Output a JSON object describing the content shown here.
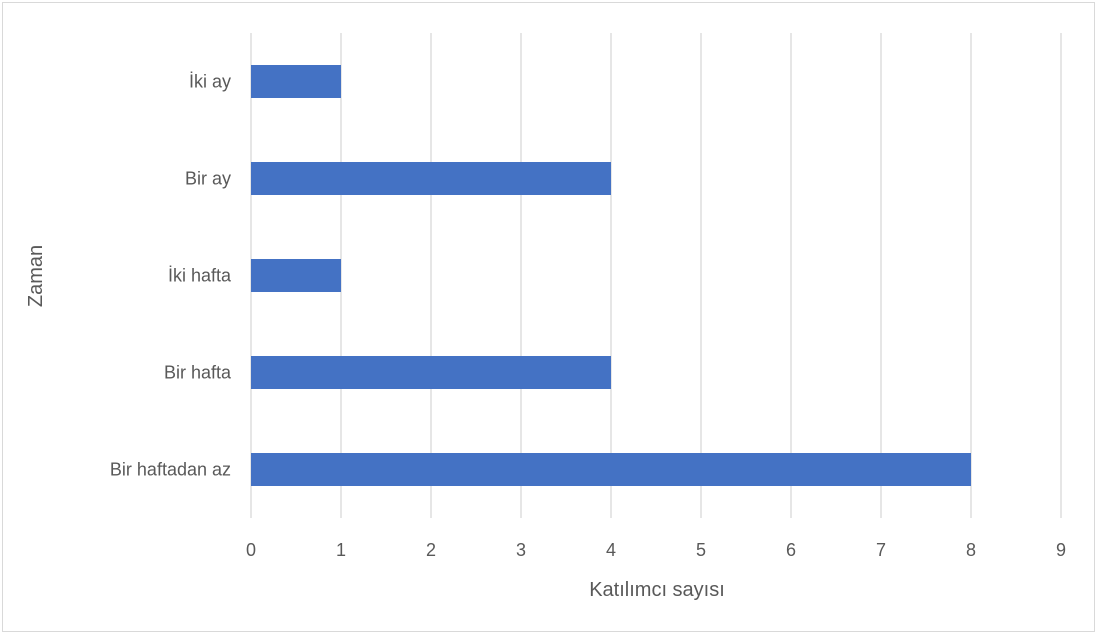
{
  "chart_data": {
    "type": "bar",
    "orientation": "horizontal",
    "categories": [
      "İki ay",
      "Bir ay",
      "İki hafta",
      "Bir hafta",
      "Bir haftadan az"
    ],
    "values": [
      1,
      4,
      1,
      4,
      8
    ],
    "title": "",
    "xlabel": "Katılımcı sayısı",
    "ylabel": "Zaman",
    "xlim": [
      0,
      9
    ],
    "x_ticks": [
      "0",
      "1",
      "2",
      "3",
      "4",
      "5",
      "6",
      "7",
      "8",
      "9"
    ],
    "grid": true,
    "legend": "none",
    "bar_color": "#4472c4",
    "gridline_color": "#d9d9d9"
  }
}
